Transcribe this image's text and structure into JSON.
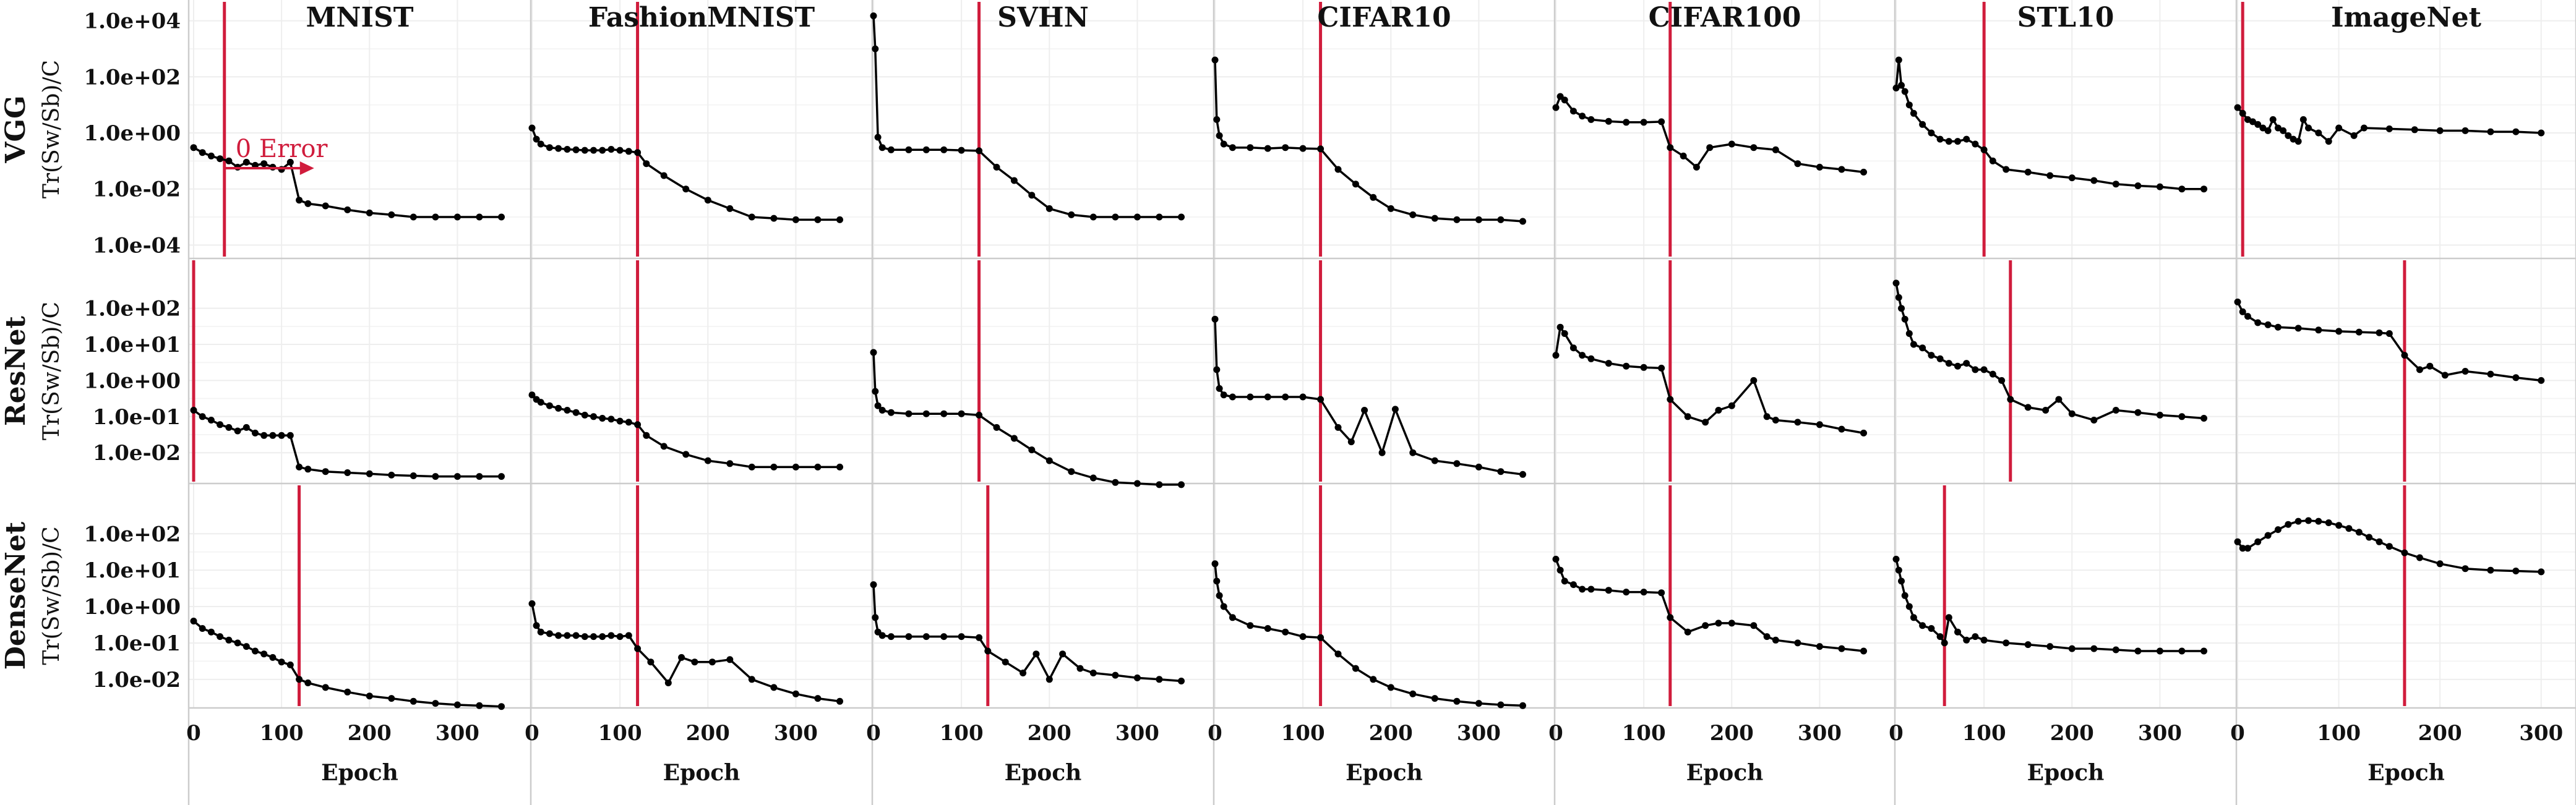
{
  "chart_data": {
    "type": "line",
    "y_scale": "log",
    "grid": true,
    "marker_color": "#000000",
    "line_color": "#000000",
    "vline_color": "#d01c3c",
    "grid_color": "#eeeeee",
    "divider_color": "#cccccc",
    "columns": [
      "MNIST",
      "FashionMNIST",
      "SVHN",
      "CIFAR10",
      "CIFAR100",
      "STL10",
      "ImageNet"
    ],
    "rows": [
      "VGG",
      "ResNet",
      "DenseNet"
    ],
    "ylabel": "Tr(Sw/Sb)/C",
    "xlabel": "Epoch",
    "xlim": [
      0,
      350
    ],
    "imagenet_xlim": [
      0,
      300
    ],
    "x_ticks": [
      "0",
      "100",
      "200",
      "300"
    ],
    "row_axes": [
      {
        "ylim": [
          5e-05,
          30000
        ],
        "ticks": [
          "1.0e+04",
          "1.0e+02",
          "1.0e+00",
          "1.0e-02",
          "1.0e-04"
        ]
      },
      {
        "ylim": [
          0.002,
          1500
        ],
        "ticks": [
          "1.0e+02",
          "1.0e+01",
          "1.0e+00",
          "1.0e-01",
          "1.0e-02"
        ]
      },
      {
        "ylim": [
          0.002,
          1500
        ],
        "ticks": [
          "1.0e+02",
          "1.0e+01",
          "1.0e+00",
          "1.0e-01",
          "1.0e-02"
        ]
      }
    ],
    "annotation": {
      "text": "0 Error"
    },
    "panels": [
      [
        {
          "vline": 35,
          "x": [
            0,
            10,
            20,
            30,
            40,
            50,
            60,
            70,
            80,
            90,
            100,
            110,
            120,
            130,
            150,
            175,
            200,
            225,
            250,
            275,
            300,
            325,
            350
          ],
          "y": [
            0.3,
            0.2,
            0.15,
            0.12,
            0.1,
            0.06,
            0.09,
            0.07,
            0.08,
            0.06,
            0.05,
            0.09,
            0.004,
            0.003,
            0.0025,
            0.0018,
            0.0014,
            0.0012,
            0.001,
            0.001,
            0.001,
            0.001,
            0.001
          ]
        },
        {
          "vline": 120,
          "x": [
            0,
            5,
            10,
            20,
            30,
            40,
            50,
            60,
            70,
            80,
            90,
            100,
            110,
            120,
            130,
            150,
            175,
            200,
            225,
            250,
            275,
            300,
            325,
            350
          ],
          "y": [
            1.5,
            0.6,
            0.4,
            0.3,
            0.28,
            0.26,
            0.25,
            0.24,
            0.24,
            0.24,
            0.26,
            0.24,
            0.22,
            0.2,
            0.08,
            0.03,
            0.01,
            0.004,
            0.002,
            0.001,
            0.0009,
            0.0008,
            0.0008,
            0.0008
          ]
        },
        {
          "vline": 120,
          "x": [
            0,
            2,
            5,
            10,
            20,
            40,
            60,
            80,
            100,
            120,
            140,
            160,
            180,
            200,
            225,
            250,
            275,
            300,
            325,
            350
          ],
          "y": [
            15000,
            1000,
            0.7,
            0.3,
            0.25,
            0.25,
            0.25,
            0.25,
            0.24,
            0.23,
            0.06,
            0.02,
            0.006,
            0.002,
            0.0012,
            0.001,
            0.001,
            0.001,
            0.001,
            0.001
          ]
        },
        {
          "vline": 120,
          "x": [
            0,
            2,
            5,
            10,
            20,
            40,
            60,
            80,
            100,
            120,
            140,
            160,
            180,
            200,
            225,
            250,
            275,
            300,
            325,
            350
          ],
          "y": [
            400,
            3,
            0.8,
            0.4,
            0.3,
            0.3,
            0.28,
            0.3,
            0.28,
            0.27,
            0.05,
            0.015,
            0.005,
            0.002,
            0.0012,
            0.0009,
            0.0008,
            0.0008,
            0.0008,
            0.0007
          ]
        },
        {
          "vline": 130,
          "x": [
            0,
            5,
            10,
            20,
            30,
            40,
            60,
            80,
            100,
            120,
            130,
            145,
            160,
            175,
            200,
            225,
            250,
            275,
            300,
            325,
            350
          ],
          "y": [
            8,
            20,
            15,
            6,
            4,
            3,
            2.6,
            2.4,
            2.4,
            2.5,
            0.3,
            0.15,
            0.06,
            0.3,
            0.4,
            0.3,
            0.25,
            0.08,
            0.06,
            0.05,
            0.04
          ]
        },
        {
          "vline": 100,
          "x": [
            0,
            3,
            6,
            10,
            15,
            20,
            30,
            40,
            50,
            60,
            70,
            80,
            90,
            100,
            110,
            125,
            150,
            175,
            200,
            225,
            250,
            275,
            300,
            325,
            350
          ],
          "y": [
            40,
            400,
            50,
            30,
            10,
            5,
            2,
            1,
            0.6,
            0.5,
            0.5,
            0.6,
            0.4,
            0.25,
            0.1,
            0.05,
            0.04,
            0.03,
            0.025,
            0.02,
            0.015,
            0.013,
            0.012,
            0.01,
            0.01
          ]
        },
        {
          "vline": 5,
          "x": [
            0,
            5,
            10,
            15,
            20,
            25,
            30,
            35,
            40,
            45,
            50,
            55,
            60,
            65,
            70,
            80,
            90,
            100,
            115,
            125,
            150,
            175,
            200,
            225,
            250,
            275,
            300
          ],
          "y": [
            8,
            5,
            3,
            2.5,
            2,
            1.5,
            1.2,
            3,
            1.5,
            1.2,
            0.8,
            0.6,
            0.5,
            3,
            1.5,
            1,
            0.5,
            1.5,
            0.8,
            1.5,
            1.4,
            1.3,
            1.2,
            1.2,
            1.1,
            1.1,
            1
          ]
        }
      ],
      [
        {
          "vline": 0,
          "x": [
            0,
            10,
            20,
            30,
            40,
            50,
            60,
            70,
            80,
            90,
            100,
            110,
            120,
            130,
            150,
            175,
            200,
            225,
            250,
            275,
            300,
            325,
            350
          ],
          "y": [
            0.15,
            0.1,
            0.08,
            0.06,
            0.05,
            0.04,
            0.05,
            0.035,
            0.03,
            0.03,
            0.03,
            0.03,
            0.004,
            0.0035,
            0.003,
            0.0028,
            0.0026,
            0.0024,
            0.0023,
            0.0022,
            0.0022,
            0.0022,
            0.0022
          ]
        },
        {
          "vline": 120,
          "x": [
            0,
            5,
            10,
            20,
            30,
            40,
            50,
            60,
            70,
            80,
            90,
            100,
            110,
            120,
            130,
            150,
            175,
            200,
            225,
            250,
            275,
            300,
            325,
            350
          ],
          "y": [
            0.4,
            0.3,
            0.25,
            0.2,
            0.17,
            0.15,
            0.13,
            0.11,
            0.1,
            0.09,
            0.085,
            0.075,
            0.07,
            0.06,
            0.03,
            0.015,
            0.009,
            0.006,
            0.005,
            0.004,
            0.004,
            0.004,
            0.004,
            0.004
          ]
        },
        {
          "vline": 120,
          "x": [
            0,
            2,
            5,
            10,
            20,
            40,
            60,
            80,
            100,
            120,
            140,
            160,
            180,
            200,
            225,
            250,
            275,
            300,
            325,
            350
          ],
          "y": [
            6,
            0.5,
            0.2,
            0.15,
            0.13,
            0.12,
            0.12,
            0.12,
            0.12,
            0.11,
            0.05,
            0.025,
            0.012,
            0.006,
            0.003,
            0.002,
            0.0015,
            0.0014,
            0.0013,
            0.0013
          ]
        },
        {
          "vline": 120,
          "x": [
            0,
            2,
            5,
            10,
            20,
            40,
            60,
            80,
            100,
            120,
            140,
            155,
            170,
            190,
            205,
            225,
            250,
            275,
            300,
            325,
            350
          ],
          "y": [
            50,
            2,
            0.6,
            0.4,
            0.35,
            0.35,
            0.35,
            0.35,
            0.35,
            0.3,
            0.05,
            0.02,
            0.15,
            0.01,
            0.16,
            0.01,
            0.006,
            0.005,
            0.004,
            0.003,
            0.0025
          ]
        },
        {
          "vline": 130,
          "x": [
            0,
            5,
            10,
            20,
            30,
            40,
            60,
            80,
            100,
            120,
            130,
            150,
            170,
            185,
            200,
            225,
            240,
            250,
            275,
            300,
            325,
            350
          ],
          "y": [
            5,
            30,
            20,
            8,
            5,
            4,
            3,
            2.5,
            2.3,
            2.2,
            0.3,
            0.1,
            0.07,
            0.15,
            0.2,
            1.0,
            0.1,
            0.08,
            0.07,
            0.06,
            0.045,
            0.035
          ]
        },
        {
          "vline": 130,
          "x": [
            0,
            3,
            6,
            10,
            15,
            20,
            30,
            40,
            50,
            60,
            70,
            80,
            90,
            100,
            110,
            120,
            130,
            150,
            170,
            185,
            200,
            225,
            250,
            275,
            300,
            325,
            350
          ],
          "y": [
            500,
            200,
            100,
            50,
            20,
            10,
            8,
            5,
            4,
            3,
            2.5,
            3,
            2,
            2,
            1.5,
            1,
            0.3,
            0.18,
            0.15,
            0.3,
            0.12,
            0.08,
            0.15,
            0.13,
            0.11,
            0.1,
            0.09
          ]
        },
        {
          "vline": 165,
          "x": [
            0,
            5,
            10,
            20,
            30,
            40,
            60,
            80,
            100,
            120,
            140,
            150,
            165,
            180,
            190,
            205,
            225,
            250,
            275,
            300
          ],
          "y": [
            150,
            80,
            60,
            40,
            35,
            30,
            28,
            25,
            23,
            22,
            21,
            20,
            5,
            2,
            2.5,
            1.4,
            1.8,
            1.5,
            1.2,
            1
          ]
        }
      ],
      [
        {
          "vline": 120,
          "x": [
            0,
            10,
            20,
            30,
            40,
            50,
            60,
            70,
            80,
            90,
            100,
            110,
            120,
            130,
            150,
            175,
            200,
            225,
            250,
            275,
            300,
            325,
            350
          ],
          "y": [
            0.4,
            0.25,
            0.2,
            0.15,
            0.12,
            0.1,
            0.08,
            0.06,
            0.05,
            0.04,
            0.03,
            0.025,
            0.01,
            0.008,
            0.006,
            0.0045,
            0.0035,
            0.003,
            0.0025,
            0.0022,
            0.002,
            0.0019,
            0.0018
          ]
        },
        {
          "vline": 120,
          "x": [
            0,
            5,
            10,
            20,
            30,
            40,
            50,
            60,
            70,
            80,
            90,
            100,
            110,
            120,
            135,
            155,
            170,
            185,
            205,
            225,
            250,
            275,
            300,
            325,
            350
          ],
          "y": [
            1.2,
            0.3,
            0.2,
            0.18,
            0.16,
            0.16,
            0.16,
            0.15,
            0.15,
            0.15,
            0.16,
            0.15,
            0.16,
            0.07,
            0.03,
            0.008,
            0.04,
            0.03,
            0.03,
            0.035,
            0.01,
            0.006,
            0.004,
            0.003,
            0.0025
          ]
        },
        {
          "vline": 130,
          "x": [
            0,
            2,
            5,
            10,
            20,
            40,
            60,
            80,
            100,
            120,
            130,
            150,
            170,
            185,
            200,
            215,
            235,
            250,
            275,
            300,
            325,
            350
          ],
          "y": [
            4,
            0.5,
            0.2,
            0.16,
            0.15,
            0.15,
            0.15,
            0.15,
            0.15,
            0.14,
            0.06,
            0.03,
            0.015,
            0.05,
            0.01,
            0.05,
            0.02,
            0.015,
            0.013,
            0.011,
            0.01,
            0.009
          ]
        },
        {
          "vline": 120,
          "x": [
            0,
            2,
            5,
            10,
            20,
            40,
            60,
            80,
            100,
            120,
            140,
            160,
            180,
            200,
            225,
            250,
            275,
            300,
            325,
            350
          ],
          "y": [
            15,
            5,
            2,
            1,
            0.5,
            0.3,
            0.25,
            0.2,
            0.15,
            0.14,
            0.05,
            0.02,
            0.01,
            0.006,
            0.004,
            0.003,
            0.0025,
            0.0022,
            0.002,
            0.0019
          ]
        },
        {
          "vline": 130,
          "x": [
            0,
            5,
            10,
            20,
            30,
            40,
            60,
            80,
            100,
            120,
            130,
            150,
            170,
            185,
            200,
            225,
            240,
            250,
            275,
            300,
            325,
            350
          ],
          "y": [
            20,
            10,
            5,
            4,
            3,
            3,
            2.8,
            2.5,
            2.5,
            2.4,
            0.5,
            0.2,
            0.3,
            0.35,
            0.35,
            0.3,
            0.15,
            0.12,
            0.1,
            0.08,
            0.07,
            0.06
          ]
        },
        {
          "vline": 55,
          "x": [
            0,
            3,
            6,
            10,
            15,
            20,
            30,
            40,
            50,
            55,
            60,
            70,
            80,
            90,
            100,
            125,
            150,
            175,
            200,
            225,
            250,
            275,
            300,
            325,
            350
          ],
          "y": [
            20,
            10,
            5,
            2,
            1,
            0.5,
            0.3,
            0.25,
            0.15,
            0.1,
            0.5,
            0.2,
            0.12,
            0.15,
            0.12,
            0.1,
            0.09,
            0.08,
            0.07,
            0.07,
            0.065,
            0.06,
            0.06,
            0.06,
            0.06
          ]
        },
        {
          "vline": 165,
          "x": [
            0,
            5,
            10,
            20,
            30,
            40,
            50,
            60,
            70,
            80,
            90,
            100,
            110,
            120,
            130,
            140,
            150,
            165,
            180,
            200,
            225,
            250,
            275,
            300
          ],
          "y": [
            60,
            40,
            40,
            60,
            90,
            130,
            180,
            220,
            230,
            220,
            200,
            170,
            140,
            110,
            80,
            60,
            45,
            30,
            22,
            15,
            11,
            10,
            9.5,
            9
          ]
        }
      ]
    ]
  }
}
